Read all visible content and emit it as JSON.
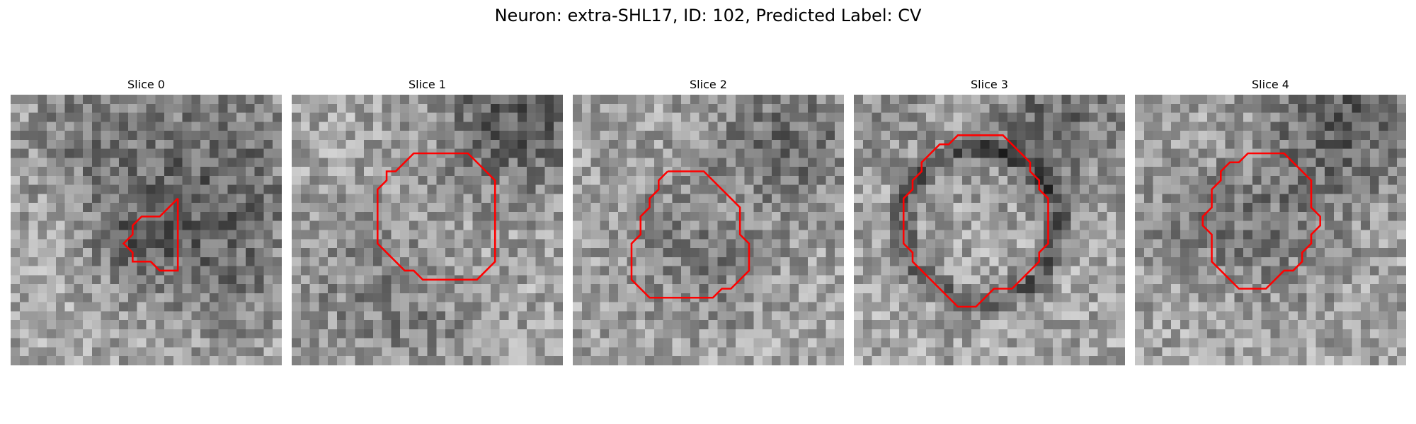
{
  "figure": {
    "title": "Neuron: extra-SHL17, ID: 102, Predicted Label: CV"
  },
  "panels": [
    {
      "title": "Slice 0",
      "contour": [
        [
          18.5,
          11.5
        ],
        [
          18.5,
          19.5
        ],
        [
          16.5,
          19.5
        ],
        [
          15.5,
          18.5
        ],
        [
          14.5,
          18.5
        ],
        [
          13.5,
          18.5
        ],
        [
          13.5,
          17.5
        ],
        [
          12.5,
          16.5
        ],
        [
          13.5,
          15.5
        ],
        [
          13.5,
          14.5
        ],
        [
          14.5,
          13.5
        ],
        [
          16.5,
          13.5
        ],
        [
          18.5,
          11.5
        ]
      ],
      "seed": 11,
      "dark_spots": [
        [
          22,
          8,
          7,
          60
        ],
        [
          8,
          4,
          5,
          40
        ],
        [
          14,
          16,
          4,
          55
        ],
        [
          24,
          20,
          5,
          35
        ]
      ]
    },
    {
      "title": "Slice 1",
      "contour": [
        [
          16.5,
          6.5
        ],
        [
          19.5,
          6.5
        ],
        [
          20.5,
          7.5
        ],
        [
          21.5,
          8.5
        ],
        [
          22.5,
          9.5
        ],
        [
          22.5,
          18.5
        ],
        [
          21.5,
          19.5
        ],
        [
          20.5,
          20.5
        ],
        [
          15.5,
          20.5
        ],
        [
          14.5,
          20.5
        ],
        [
          13.5,
          19.5
        ],
        [
          12.5,
          19.5
        ],
        [
          11.5,
          18.5
        ],
        [
          10.5,
          17.5
        ],
        [
          9.5,
          16.5
        ],
        [
          9.5,
          10.5
        ],
        [
          10.5,
          9.5
        ],
        [
          10.5,
          8.5
        ],
        [
          11.5,
          8.5
        ],
        [
          12.5,
          7.5
        ],
        [
          13.5,
          6.5
        ],
        [
          16.5,
          6.5
        ]
      ],
      "seed": 23,
      "dark_spots": [
        [
          24,
          2,
          6,
          75
        ],
        [
          6,
          20,
          6,
          25
        ],
        [
          14,
          24,
          5,
          25
        ]
      ]
    },
    {
      "title": "Slice 2",
      "contour": [
        [
          10.5,
          8.5
        ],
        [
          10.5,
          8.5
        ],
        [
          14.5,
          8.5
        ],
        [
          16.5,
          10.5
        ],
        [
          17.5,
          11.5
        ],
        [
          18.5,
          12.5
        ],
        [
          18.5,
          15.5
        ],
        [
          19.5,
          16.5
        ],
        [
          19.5,
          19.5
        ],
        [
          18.5,
          20.5
        ],
        [
          17.5,
          21.5
        ],
        [
          16.5,
          21.5
        ],
        [
          15.5,
          22.5
        ],
        [
          8.5,
          22.5
        ],
        [
          7.5,
          21.5
        ],
        [
          6.5,
          20.5
        ],
        [
          6.5,
          16.5
        ],
        [
          7.5,
          15.5
        ],
        [
          7.5,
          13.5
        ],
        [
          8.5,
          12.5
        ],
        [
          8.5,
          11.5
        ],
        [
          9.5,
          10.5
        ],
        [
          9.5,
          9.5
        ],
        [
          10.5,
          8.5
        ]
      ],
      "seed": 37,
      "dark_spots": [
        [
          24,
          4,
          6,
          55
        ],
        [
          10,
          14,
          6,
          25
        ],
        [
          16,
          20,
          4,
          30
        ]
      ]
    },
    {
      "title": "Slice 3",
      "contour": [
        [
          12.5,
          4.5
        ],
        [
          16.5,
          4.5
        ],
        [
          17.5,
          5.5
        ],
        [
          18.5,
          6.5
        ],
        [
          19.5,
          7.5
        ],
        [
          19.5,
          8.5
        ],
        [
          20.5,
          9.5
        ],
        [
          20.5,
          10.5
        ],
        [
          21.5,
          11.5
        ],
        [
          21.5,
          16.5
        ],
        [
          20.5,
          17.5
        ],
        [
          20.5,
          18.5
        ],
        [
          19.5,
          19.5
        ],
        [
          18.5,
          20.5
        ],
        [
          17.5,
          21.5
        ],
        [
          16.5,
          21.5
        ],
        [
          15.5,
          21.5
        ],
        [
          14.5,
          22.5
        ],
        [
          13.5,
          23.5
        ],
        [
          11.5,
          23.5
        ],
        [
          10.5,
          22.5
        ],
        [
          9.5,
          21.5
        ],
        [
          8.5,
          20.5
        ],
        [
          7.5,
          19.5
        ],
        [
          6.5,
          18.5
        ],
        [
          6.5,
          17.5
        ],
        [
          5.5,
          16.5
        ],
        [
          5.5,
          11.5
        ],
        [
          6.5,
          10.5
        ],
        [
          6.5,
          9.5
        ],
        [
          7.5,
          8.5
        ],
        [
          7.5,
          7.5
        ],
        [
          8.5,
          6.5
        ],
        [
          9.5,
          5.5
        ],
        [
          10.5,
          5.5
        ],
        [
          11.5,
          4.5
        ],
        [
          12.5,
          4.5
        ]
      ],
      "seed": 41,
      "ring": [
        13.5,
        14,
        8.5,
        70
      ],
      "dark_spots": [
        [
          22,
          2,
          6,
          55
        ],
        [
          2,
          2,
          4,
          30
        ]
      ]
    },
    {
      "title": "Slice 4",
      "contour": [
        [
          13.5,
          6.5
        ],
        [
          16.5,
          6.5
        ],
        [
          17.5,
          7.5
        ],
        [
          18.5,
          8.5
        ],
        [
          19.5,
          9.5
        ],
        [
          19.5,
          12.5
        ],
        [
          20.5,
          13.5
        ],
        [
          20.5,
          14.5
        ],
        [
          19.5,
          15.5
        ],
        [
          19.5,
          16.5
        ],
        [
          18.5,
          17.5
        ],
        [
          18.5,
          18.5
        ],
        [
          17.5,
          19.5
        ],
        [
          16.5,
          19.5
        ],
        [
          15.5,
          20.5
        ],
        [
          14.5,
          21.5
        ],
        [
          12.5,
          21.5
        ],
        [
          11.5,
          21.5
        ],
        [
          10.5,
          20.5
        ],
        [
          9.5,
          19.5
        ],
        [
          8.5,
          18.5
        ],
        [
          8.5,
          15.5
        ],
        [
          7.5,
          14.5
        ],
        [
          7.5,
          13.5
        ],
        [
          8.5,
          12.5
        ],
        [
          8.5,
          10.5
        ],
        [
          9.5,
          9.5
        ],
        [
          9.5,
          8.5
        ],
        [
          10.5,
          7.5
        ],
        [
          11.5,
          7.5
        ],
        [
          12.5,
          6.5
        ],
        [
          13.5,
          6.5
        ]
      ],
      "seed": 53,
      "dark_spots": [
        [
          23,
          2,
          6,
          70
        ],
        [
          14,
          14,
          6,
          40
        ],
        [
          4,
          14,
          4,
          25
        ]
      ]
    }
  ],
  "style": {
    "contour_color": "#ff0000",
    "grid_size": 30
  }
}
